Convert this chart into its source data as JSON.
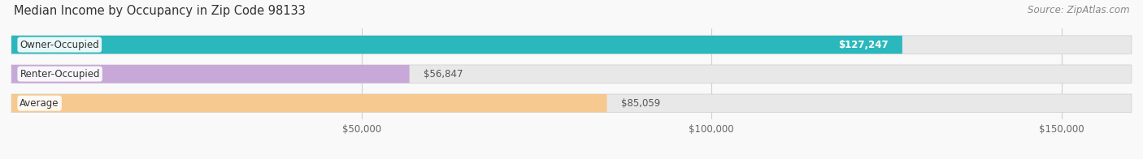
{
  "title": "Median Income by Occupancy in Zip Code 98133",
  "source": "Source: ZipAtlas.com",
  "categories": [
    "Owner-Occupied",
    "Renter-Occupied",
    "Average"
  ],
  "values": [
    127247,
    56847,
    85059
  ],
  "bar_colors": [
    "#2ab8bc",
    "#c8a8d8",
    "#f5c990"
  ],
  "bar_bg_color": "#e8e8e8",
  "label_values": [
    "$127,247",
    "$56,847",
    "$85,059"
  ],
  "xlim": [
    0,
    160000
  ],
  "xticks": [
    50000,
    100000,
    150000
  ],
  "xtick_labels": [
    "$50,000",
    "$100,000",
    "$150,000"
  ],
  "bg_color": "#f9f9f9",
  "title_fontsize": 10.5,
  "source_fontsize": 8.5,
  "bar_height": 0.62,
  "bar_label_fontsize": 8.5,
  "cat_label_fontsize": 8.5,
  "grid_color": "#d0d0d0",
  "value_label_color": "#555555",
  "cat_label_color": "#333333"
}
